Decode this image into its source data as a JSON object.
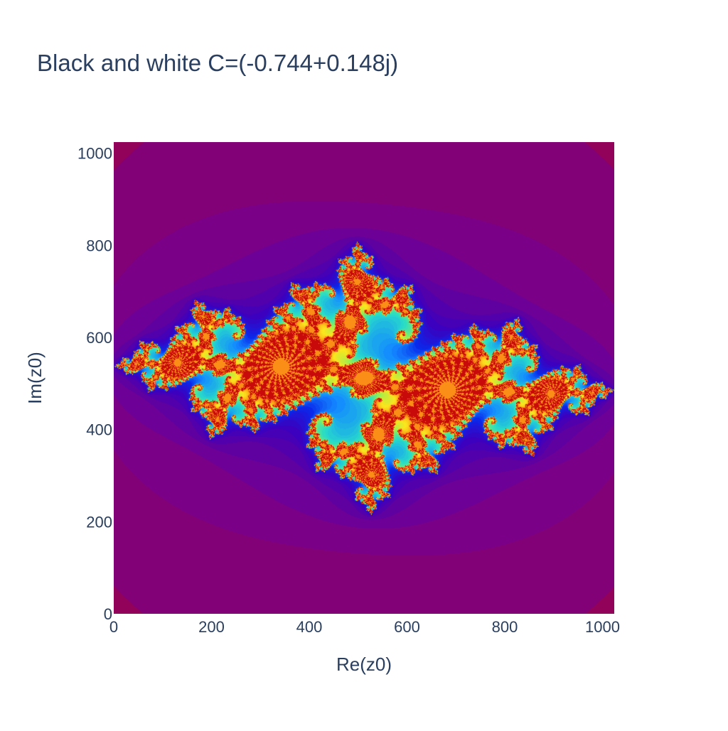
{
  "chart_data": {
    "type": "heatmap",
    "title": "Black and white C=(-0.744+0.148j)",
    "xlabel": "Re(z0)",
    "ylabel": "Im(z0)",
    "xlim": [
      0,
      1024
    ],
    "ylim": [
      0,
      1024
    ],
    "x_ticks": [
      0,
      200,
      400,
      600,
      800,
      1000
    ],
    "y_ticks": [
      0,
      200,
      400,
      600,
      800,
      1000
    ],
    "x_tick_labels": [
      "0",
      "200",
      "400",
      "600",
      "800",
      "1000"
    ],
    "y_tick_labels": [
      "0",
      "200",
      "400",
      "600",
      "800",
      "1000"
    ],
    "c_real": -0.744,
    "c_imag": 0.148,
    "colorscale": "jet-like",
    "background_color": "#92025a",
    "legend": "none",
    "grid": false
  }
}
